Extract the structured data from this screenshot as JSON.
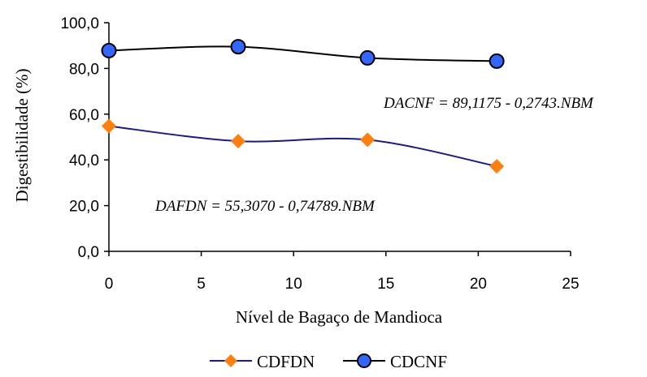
{
  "chart_data": {
    "type": "line",
    "xlabel": "Nível de Bagaço de Mandioca",
    "ylabel": "Digestibilidade (%)",
    "xlim": [
      0,
      25
    ],
    "ylim": [
      0,
      100
    ],
    "x_ticks": [
      0,
      5,
      10,
      15,
      20,
      25
    ],
    "x_tick_labels": [
      "0",
      "5",
      "10",
      "15",
      "20",
      "25"
    ],
    "y_ticks": [
      0,
      20,
      40,
      60,
      80,
      100
    ],
    "y_tick_labels": [
      "0,0",
      "20,0",
      "40,0",
      "60,0",
      "80,0",
      "100,0"
    ],
    "grid": false,
    "legend_position": "bottom",
    "series": [
      {
        "name": "CDFDN",
        "marker": "diamond",
        "line_color": "#1a1a8c",
        "marker_color": "#ff7f0e",
        "x": [
          0,
          7,
          14,
          21
        ],
        "values": [
          54.8,
          48.2,
          48.8,
          37.2
        ]
      },
      {
        "name": "CDCNF",
        "marker": "circle",
        "line_color": "#000000",
        "marker_color": "#3366ff",
        "x": [
          0,
          7,
          14,
          21
        ],
        "values": [
          87.8,
          89.5,
          84.6,
          83.2
        ]
      }
    ],
    "annotations": [
      {
        "text": "DACNF = 89,1175 - 0,2743.NBM"
      },
      {
        "text": "DAFDN = 55,3070 - 0,74789.NBM"
      }
    ]
  }
}
